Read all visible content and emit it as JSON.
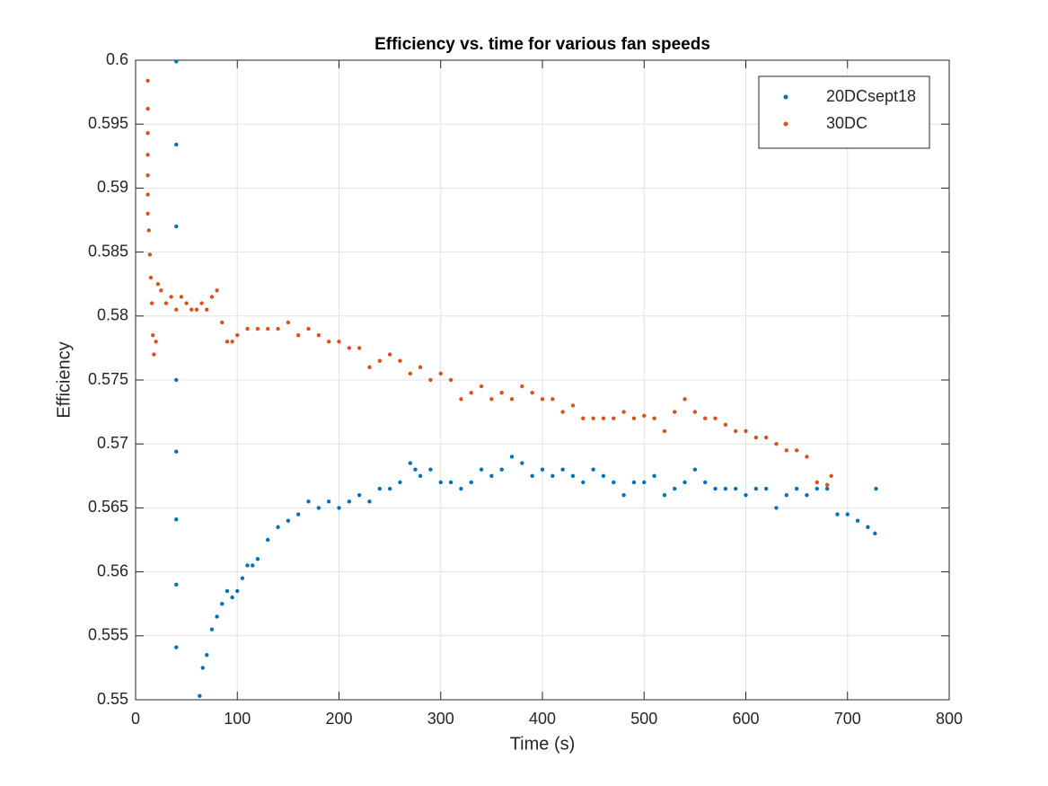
{
  "chart_data": {
    "type": "scatter",
    "title": "Efficiency vs. time for various fan speeds",
    "x_label": "Time (s)",
    "y_label": "Efficiency",
    "xlim": [
      0,
      800
    ],
    "ylim": [
      0.55,
      0.6
    ],
    "xticks": [
      0,
      100,
      200,
      300,
      400,
      500,
      600,
      700,
      800
    ],
    "yticks": [
      0.55,
      0.555,
      0.56,
      0.565,
      0.57,
      0.575,
      0.58,
      0.585,
      0.59,
      0.595,
      0.6
    ],
    "grid": true,
    "legend": "upper-right",
    "series": [
      {
        "name": "20DCsept18",
        "color": "#0072BD",
        "x": [
          40,
          40,
          40,
          40,
          40,
          40,
          40,
          40,
          63,
          66,
          70,
          75,
          80,
          85,
          90,
          95,
          100,
          105,
          110,
          115,
          120,
          130,
          140,
          150,
          160,
          170,
          180,
          190,
          200,
          210,
          220,
          230,
          240,
          250,
          260,
          270,
          275,
          280,
          290,
          300,
          310,
          320,
          330,
          340,
          350,
          360,
          370,
          380,
          390,
          400,
          410,
          420,
          430,
          440,
          450,
          460,
          470,
          480,
          490,
          500,
          510,
          520,
          530,
          540,
          550,
          560,
          570,
          580,
          590,
          600,
          610,
          620,
          630,
          640,
          650,
          660,
          670,
          680,
          690,
          700,
          710,
          720,
          727,
          728
        ],
        "values": [
          0.5999,
          0.5934,
          0.587,
          0.575,
          0.5694,
          0.5641,
          0.559,
          0.5541,
          0.5503,
          0.5525,
          0.5535,
          0.5555,
          0.5565,
          0.5575,
          0.5585,
          0.558,
          0.5585,
          0.5595,
          0.5605,
          0.5605,
          0.561,
          0.5625,
          0.5635,
          0.564,
          0.5645,
          0.5655,
          0.565,
          0.5655,
          0.565,
          0.5655,
          0.566,
          0.5655,
          0.5665,
          0.5665,
          0.567,
          0.5685,
          0.568,
          0.5675,
          0.568,
          0.567,
          0.567,
          0.5665,
          0.567,
          0.568,
          0.5675,
          0.568,
          0.569,
          0.5685,
          0.5675,
          0.568,
          0.5675,
          0.568,
          0.5675,
          0.567,
          0.568,
          0.5675,
          0.567,
          0.566,
          0.567,
          0.567,
          0.5675,
          0.566,
          0.5665,
          0.567,
          0.568,
          0.567,
          0.5665,
          0.5665,
          0.5665,
          0.566,
          0.5665,
          0.5665,
          0.565,
          0.566,
          0.5665,
          0.566,
          0.5665,
          0.5665,
          0.5645,
          0.5645,
          0.564,
          0.5635,
          0.563,
          0.5665
        ]
      },
      {
        "name": "30DC",
        "color": "#D95319",
        "x": [
          12,
          12,
          12,
          12,
          12,
          12,
          12,
          13,
          14,
          15,
          16,
          17,
          18,
          20,
          22,
          25,
          30,
          35,
          40,
          45,
          50,
          55,
          60,
          65,
          70,
          75,
          80,
          85,
          90,
          95,
          100,
          110,
          120,
          130,
          140,
          150,
          160,
          170,
          180,
          190,
          200,
          210,
          220,
          230,
          240,
          250,
          260,
          270,
          280,
          290,
          300,
          310,
          320,
          330,
          340,
          350,
          360,
          370,
          380,
          390,
          400,
          410,
          420,
          430,
          440,
          450,
          460,
          470,
          480,
          490,
          500,
          510,
          520,
          530,
          540,
          550,
          560,
          570,
          580,
          590,
          600,
          610,
          620,
          630,
          640,
          650,
          660,
          670,
          680,
          684
        ],
        "values": [
          0.5984,
          0.5962,
          0.5943,
          0.5926,
          0.591,
          0.5895,
          0.588,
          0.5867,
          0.5848,
          0.583,
          0.581,
          0.5785,
          0.577,
          0.578,
          0.5825,
          0.582,
          0.581,
          0.5815,
          0.5805,
          0.5815,
          0.581,
          0.5805,
          0.5805,
          0.581,
          0.5805,
          0.5815,
          0.582,
          0.5795,
          0.578,
          0.578,
          0.5785,
          0.579,
          0.579,
          0.579,
          0.579,
          0.5795,
          0.5785,
          0.579,
          0.5785,
          0.578,
          0.578,
          0.5775,
          0.5775,
          0.576,
          0.5765,
          0.577,
          0.5765,
          0.5755,
          0.576,
          0.575,
          0.5755,
          0.575,
          0.5735,
          0.574,
          0.5745,
          0.5735,
          0.574,
          0.5735,
          0.5745,
          0.574,
          0.5735,
          0.5735,
          0.5725,
          0.573,
          0.572,
          0.572,
          0.572,
          0.572,
          0.5725,
          0.572,
          0.5722,
          0.572,
          0.571,
          0.5725,
          0.5735,
          0.5725,
          0.572,
          0.572,
          0.5715,
          0.571,
          0.571,
          0.5705,
          0.5705,
          0.57,
          0.5695,
          0.5695,
          0.569,
          0.567,
          0.5668,
          0.5675
        ]
      }
    ]
  }
}
